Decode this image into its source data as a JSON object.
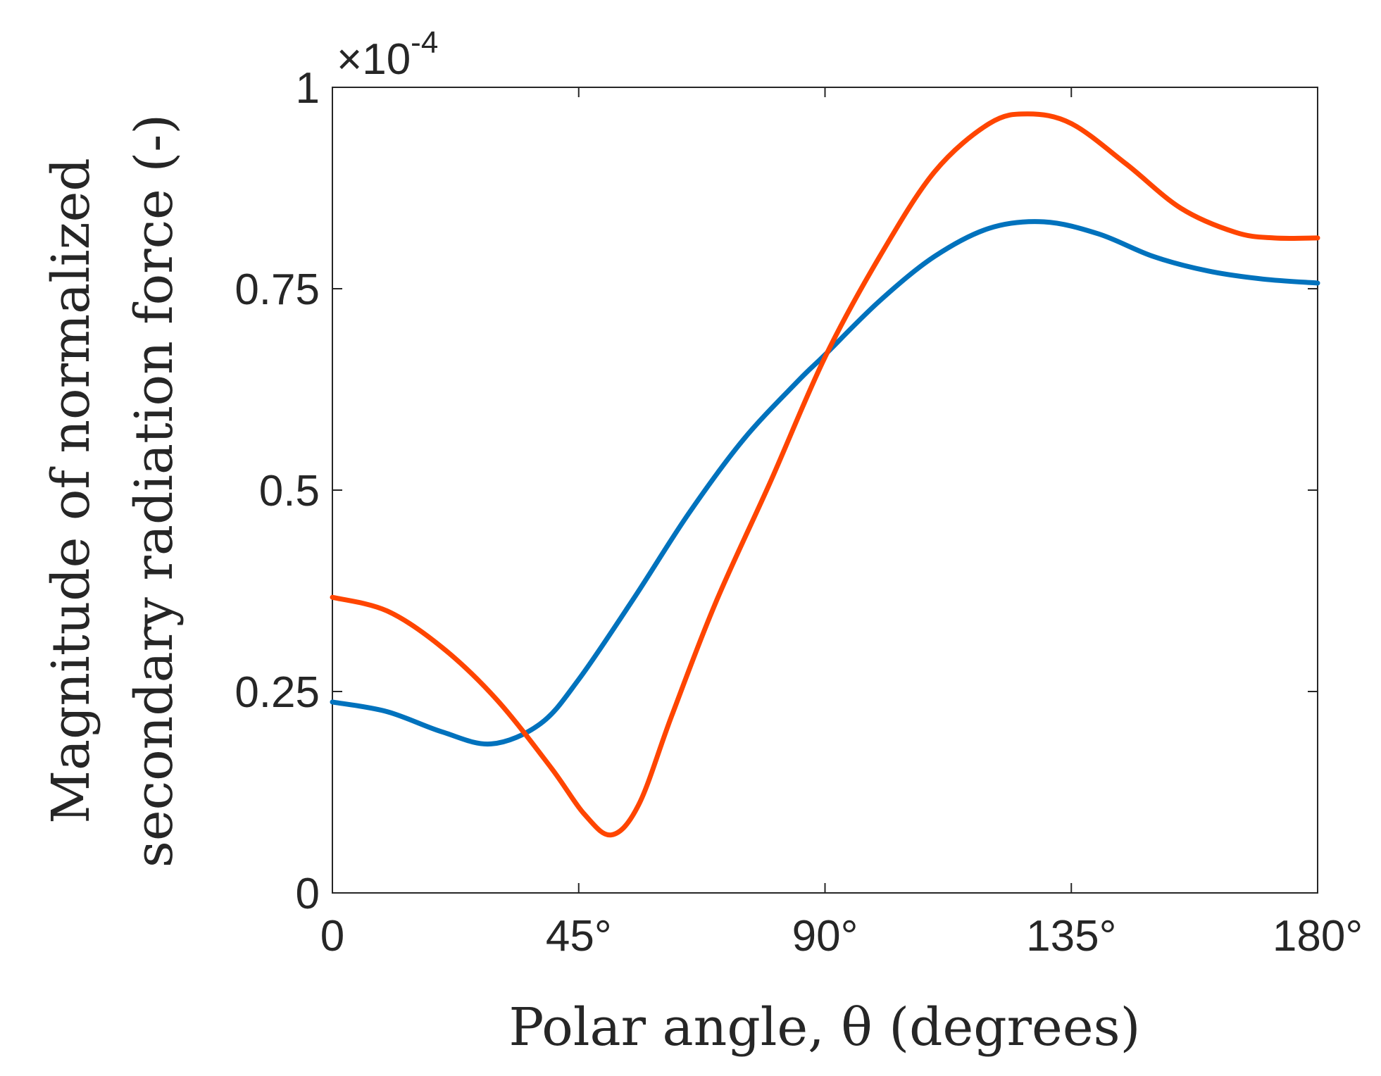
{
  "chart_data": {
    "type": "line",
    "title": "",
    "xlabel": "Polar angle, θ (degrees)",
    "ylabel_line1": "Magnitude of normalized",
    "ylabel_line2": "secondary radiation force (-)",
    "xlim": [
      0,
      180
    ],
    "ylim": [
      0,
      1
    ],
    "y_exponent_prefix": "×10",
    "y_exponent_power": "-4",
    "grid": false,
    "legend": "none",
    "xticks": [
      {
        "value": 0,
        "label": "0"
      },
      {
        "value": 45,
        "label": "45°"
      },
      {
        "value": 90,
        "label": "90°"
      },
      {
        "value": 135,
        "label": "135°"
      },
      {
        "value": 180,
        "label": "180°"
      }
    ],
    "yticks": [
      {
        "value": 0,
        "label": "0"
      },
      {
        "value": 0.25,
        "label": "0.25"
      },
      {
        "value": 0.5,
        "label": "0.5"
      },
      {
        "value": 0.75,
        "label": "0.75"
      },
      {
        "value": 1,
        "label": "1"
      }
    ],
    "series": [
      {
        "name": "blue",
        "color": "#0072BD",
        "x": [
          0,
          10,
          20,
          29,
          38,
          45,
          55,
          65,
          75,
          85,
          90,
          100,
          110,
          120,
          130,
          140,
          150,
          160,
          170,
          180
        ],
        "y": [
          0.237,
          0.225,
          0.2,
          0.185,
          0.21,
          0.265,
          0.365,
          0.47,
          0.562,
          0.635,
          0.668,
          0.735,
          0.79,
          0.825,
          0.833,
          0.818,
          0.79,
          0.772,
          0.762,
          0.757
        ]
      },
      {
        "name": "orange",
        "color": "#FF4500",
        "x": [
          0,
          10,
          20,
          30,
          40,
          46,
          51,
          56,
          62,
          70,
          80,
          90,
          100,
          110,
          120,
          127,
          135,
          145,
          155,
          165,
          172,
          180
        ],
        "y": [
          0.367,
          0.35,
          0.305,
          0.24,
          0.155,
          0.098,
          0.072,
          0.11,
          0.22,
          0.36,
          0.51,
          0.665,
          0.79,
          0.895,
          0.955,
          0.967,
          0.955,
          0.905,
          0.85,
          0.82,
          0.813,
          0.813
        ]
      }
    ]
  }
}
